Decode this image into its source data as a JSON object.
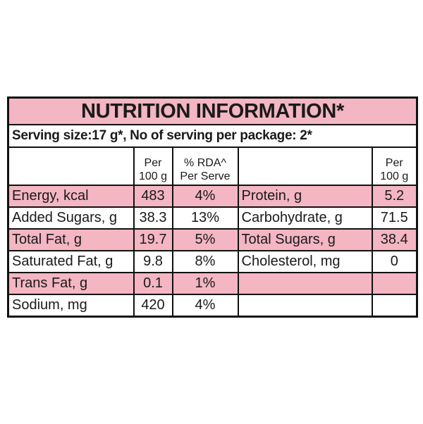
{
  "title": "NUTRITION INFORMATION*",
  "serving": "Serving size:17 g*, No of serving per package: 2*",
  "header": {
    "per_100g": [
      "Per",
      "100 g"
    ],
    "rda": [
      "% RDA^",
      "Per Serve"
    ],
    "right_per_100g": [
      "Per",
      "100 g"
    ]
  },
  "rows": [
    {
      "nutrient": "Energy, kcal",
      "per_100g": "483",
      "rda": "4%",
      "right_nutrient": "Protein, g",
      "right_per_100g": "5.2"
    },
    {
      "nutrient": "Added Sugars, g",
      "per_100g": "38.3",
      "rda": "13%",
      "right_nutrient": "Carbohydrate, g",
      "right_per_100g": "71.5"
    },
    {
      "nutrient": "Total Fat, g",
      "per_100g": "19.7",
      "rda": "5%",
      "right_nutrient": "Total Sugars, g",
      "right_per_100g": "38.4"
    },
    {
      "nutrient": "Saturated Fat, g",
      "per_100g": "9.8",
      "rda": "8%",
      "right_nutrient": "Cholesterol, mg",
      "right_per_100g": "0"
    },
    {
      "nutrient": "Trans Fat, g",
      "per_100g": "0.1",
      "rda": "1%"
    },
    {
      "nutrient": "Sodium, mg",
      "per_100g": "420",
      "rda": "4%"
    }
  ]
}
